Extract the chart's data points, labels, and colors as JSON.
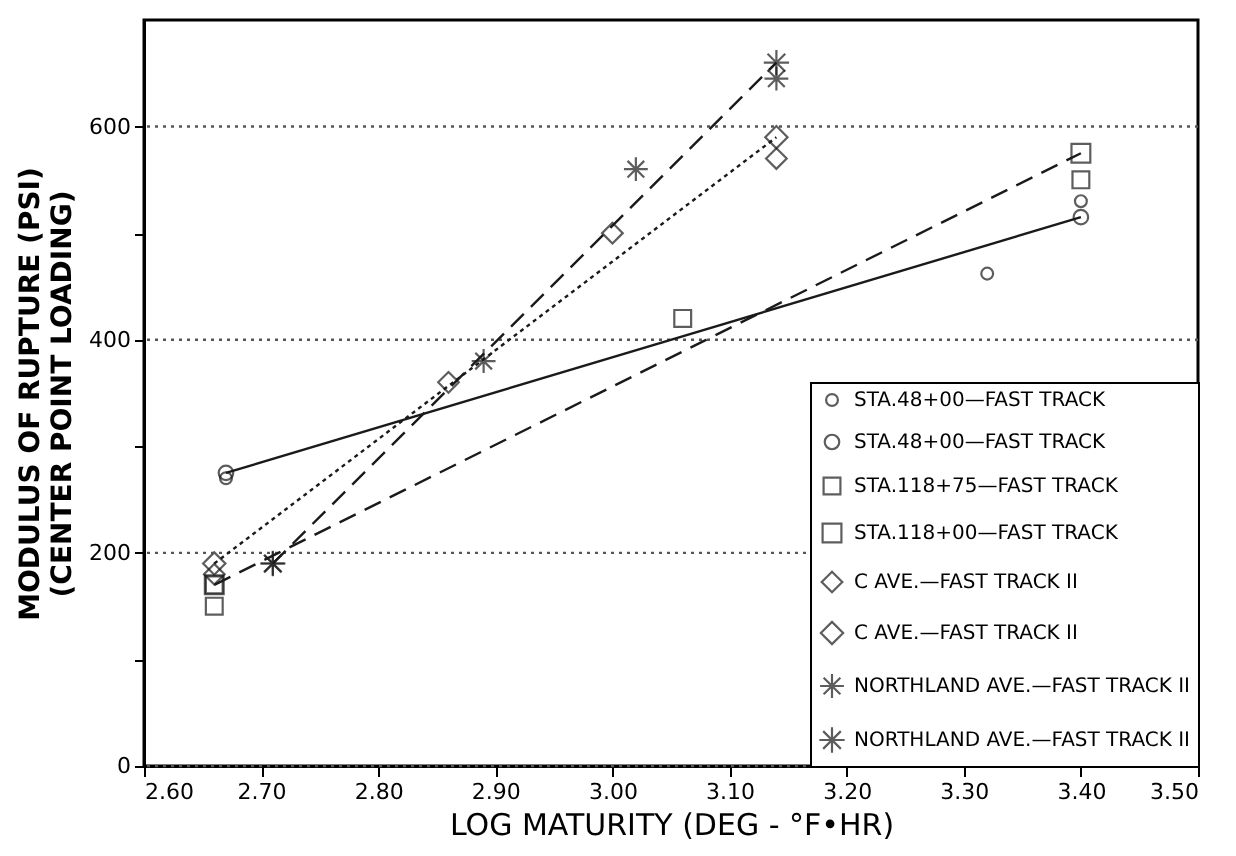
{
  "chart_data": {
    "type": "scatter",
    "xlabel": "LOG MATURITY (DEG - °F•HR)",
    "ylabel": "MODULUS OF RUPTURE (PSI)\n(CENTER POINT LOADING)",
    "xlim": [
      2.6,
      3.5
    ],
    "xticks": [
      {
        "value": 2.6,
        "label": "2.60"
      },
      {
        "value": 2.7,
        "label": "2.70"
      },
      {
        "value": 2.8,
        "label": "2.80"
      },
      {
        "value": 2.9,
        "label": "2.90"
      },
      {
        "value": 3.0,
        "label": "3.00"
      },
      {
        "value": 3.1,
        "label": "3.10"
      },
      {
        "value": 3.2,
        "label": "3.20"
      },
      {
        "value": 3.3,
        "label": "3.30"
      },
      {
        "value": 3.4,
        "label": "3.40"
      },
      {
        "value": 3.5,
        "label": "3.50"
      }
    ],
    "ylim": [
      0,
      700
    ],
    "yticks": [
      0,
      {
        "value": 100,
        "label": null
      },
      200,
      {
        "value": 300,
        "label": null
      },
      400,
      {
        "value": 500,
        "label": null
      },
      600
    ],
    "grid": "y",
    "legend": "bottom right",
    "series": [
      {
        "name": "STA.48+00—FAST TRACK",
        "marker": "circle",
        "color": "#1a1a1a",
        "x": [
          2.67,
          3.32,
          3.4
        ],
        "values": [
          270,
          462,
          530
        ]
      },
      {
        "name": "STA.48+00—FAST TRACK",
        "type": "line",
        "marker": "circle",
        "line_style": "solid",
        "color": "#1a1a1a",
        "x": [
          2.67,
          3.4
        ],
        "values": [
          275,
          515
        ]
      },
      {
        "name": "STA.118+75—FAST TRACK",
        "marker": "square",
        "color": "#1a1a1a",
        "x": [
          2.66,
          2.66,
          3.06,
          3.4
        ],
        "values": [
          150,
          170,
          420,
          550
        ]
      },
      {
        "name": "STA.118+00—FAST TRACK",
        "type": "line",
        "marker": "square",
        "line_style": "dashed",
        "color": "#1a1a1a",
        "x": [
          2.66,
          3.4
        ],
        "values": [
          170,
          575
        ]
      },
      {
        "name": "C AVE.—FAST TRACK II",
        "marker": "diamond",
        "color": "#1a1a1a",
        "x": [
          2.66,
          2.86,
          3.0,
          3.14
        ],
        "values": [
          180,
          360,
          500,
          570
        ]
      },
      {
        "name": "C AVE.—FAST TRACK II",
        "type": "line",
        "marker": "diamond",
        "line_style": "dotted",
        "color": "#1a1a1a",
        "x": [
          2.66,
          3.14
        ],
        "values": [
          190,
          590
        ]
      },
      {
        "name": "NORTHLAND AVE.—FAST TRACK II",
        "marker": "cross",
        "color": "#1a1a1a",
        "x": [
          2.71,
          2.89,
          3.02,
          3.14
        ],
        "values": [
          190,
          380,
          560,
          645
        ]
      },
      {
        "name": "NORTHLAND AVE.—FAST TRACK II",
        "type": "line",
        "marker": "cross",
        "line_style": "dashed",
        "color": "#1a1a1a",
        "x": [
          2.71,
          3.14
        ],
        "values": [
          190,
          660
        ]
      }
    ]
  }
}
